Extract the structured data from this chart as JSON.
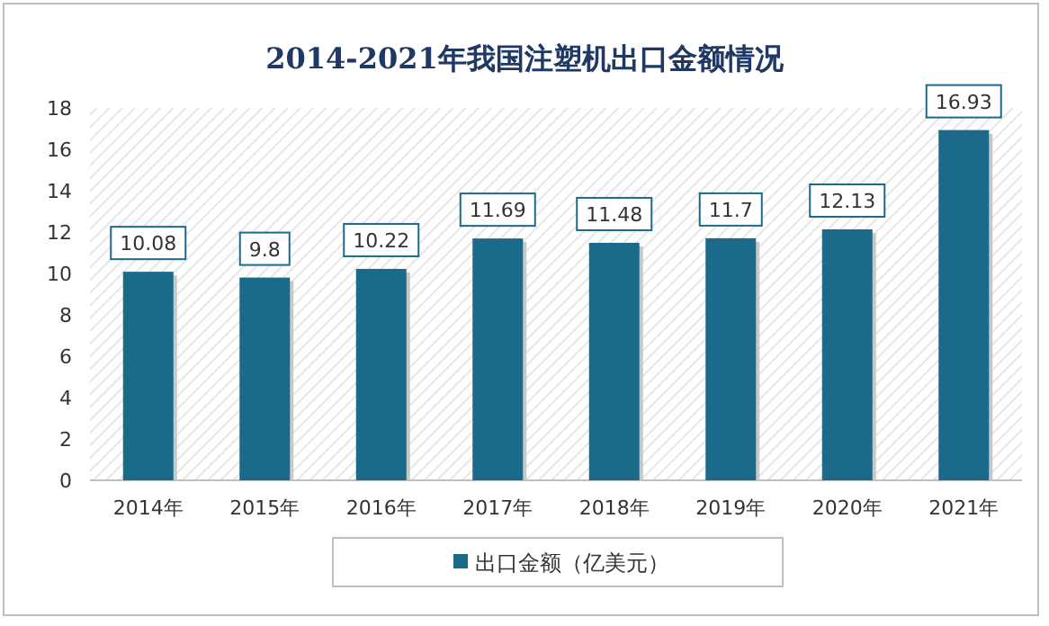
{
  "chart_data": {
    "type": "bar",
    "title": "2014-2021年我国注塑机出口金额情况",
    "categories": [
      "2014年",
      "2015年",
      "2016年",
      "2017年",
      "2018年",
      "2019年",
      "2020年",
      "2021年"
    ],
    "series": [
      {
        "name": "出口金额（亿美元）",
        "color": "#1b6a8a",
        "values": [
          10.08,
          9.8,
          10.22,
          11.69,
          11.48,
          11.7,
          12.13,
          16.93
        ]
      }
    ],
    "ylim": [
      0,
      18
    ],
    "yticks": [
      0,
      2,
      4,
      6,
      8,
      10,
      12,
      14,
      16,
      18
    ],
    "data_labels": true,
    "legend": "bottom",
    "grid": false
  }
}
